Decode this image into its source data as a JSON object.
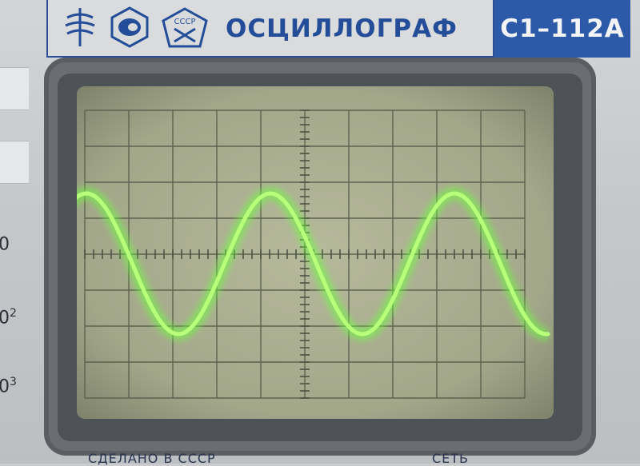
{
  "device": {
    "title": "ОСЦИЛЛОГРАФ",
    "model": "С1–112А",
    "logo_text": "СССР",
    "footer_left": "СДЕЛАНО В СССР",
    "footer_right": "СЕТЬ"
  },
  "side_labels": [
    {
      "base": "0",
      "exp": ""
    },
    {
      "base": "0",
      "exp": "2"
    },
    {
      "base": "0",
      "exp": "3"
    }
  ],
  "icons": {
    "logo_left": "resistor-emblem-icon",
    "logo_mid": "quality-mark-icon",
    "logo_right": "gost-pentagon-icon"
  },
  "colors": {
    "trace": "#b8ff7a",
    "glow": "#6cff3a",
    "brand_blue": "#2d5aa8",
    "screen": "#a9ad90"
  },
  "screen": {
    "grid_cols": 10,
    "grid_rows": 8,
    "waveform": "sine",
    "cycles_visible": 2.6
  }
}
